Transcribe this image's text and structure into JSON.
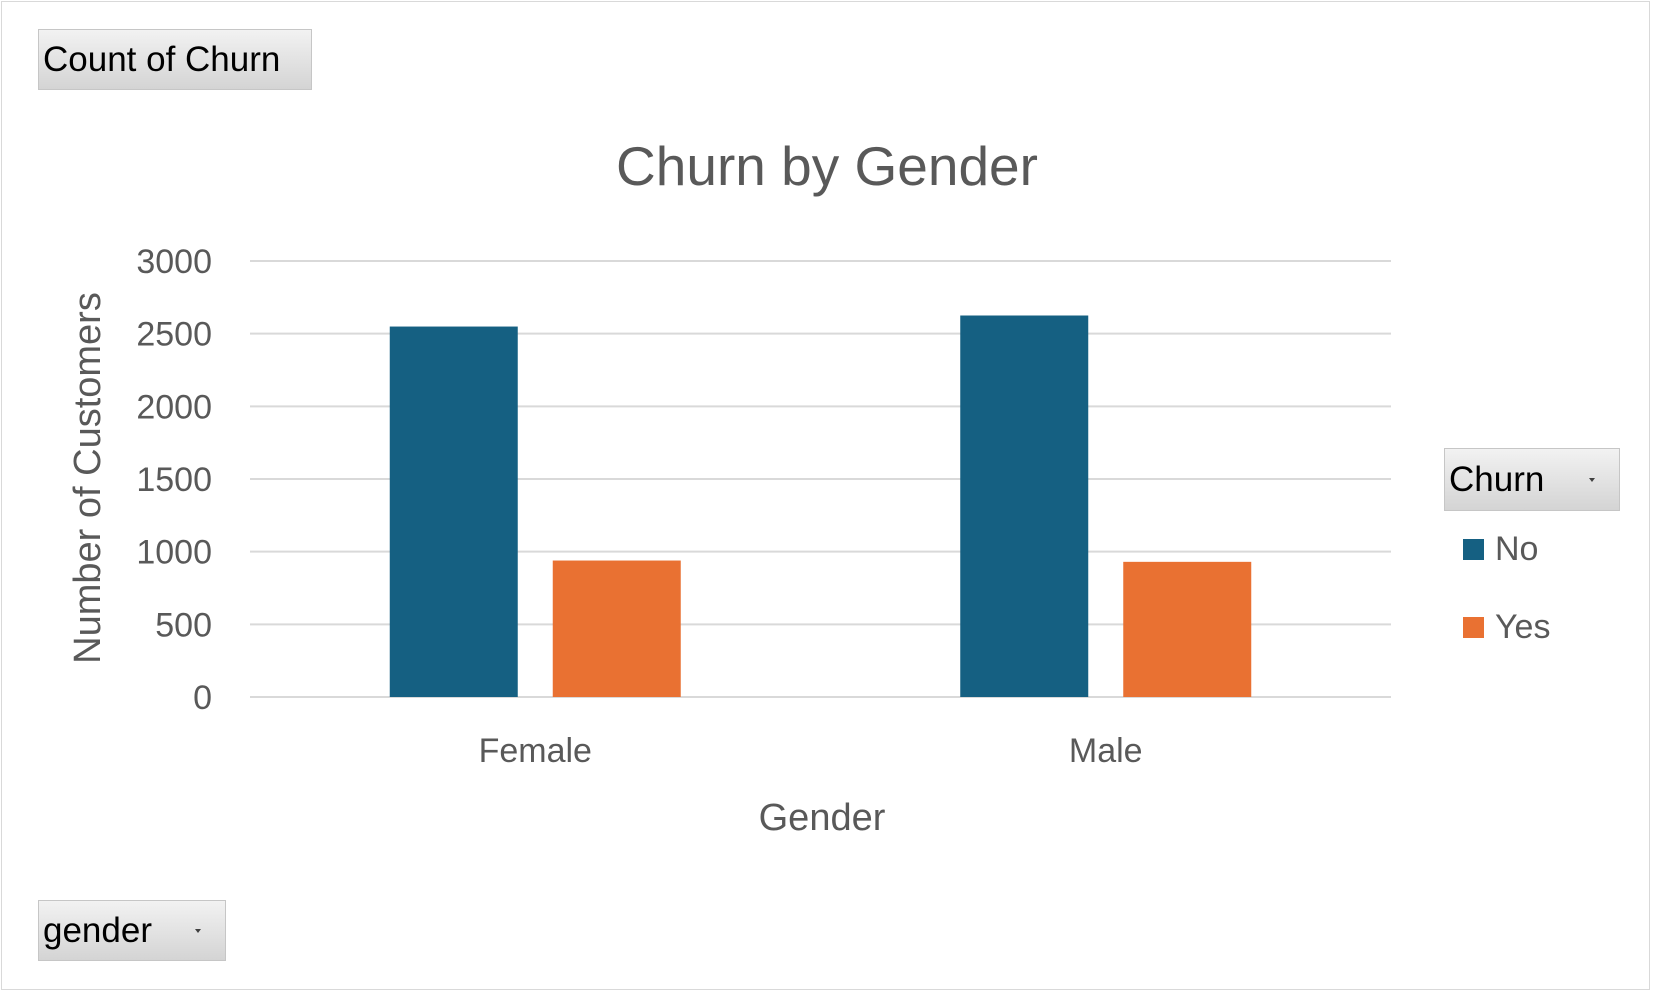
{
  "chart_data": {
    "type": "bar",
    "title": "Churn by Gender",
    "xlabel": "Gender",
    "ylabel": "Number of Customers",
    "categories": [
      "Female",
      "Male"
    ],
    "series": [
      {
        "name": "No",
        "values": [
          2549,
          2625
        ],
        "color": "#156082"
      },
      {
        "name": "Yes",
        "values": [
          939,
          930
        ],
        "color": "#E97132"
      }
    ],
    "ylim": [
      0,
      3000
    ],
    "yticks": [
      "0",
      "500",
      "1000",
      "1500",
      "2000",
      "2500",
      "3000"
    ],
    "grid": true,
    "legend_title": "Churn",
    "legend_position": "right"
  },
  "field_buttons": {
    "values_field": "Count of Churn",
    "axis_field": "gender",
    "legend_field": "Churn"
  },
  "colors": {
    "text": "#595959",
    "gridline": "#d9d9d9"
  }
}
